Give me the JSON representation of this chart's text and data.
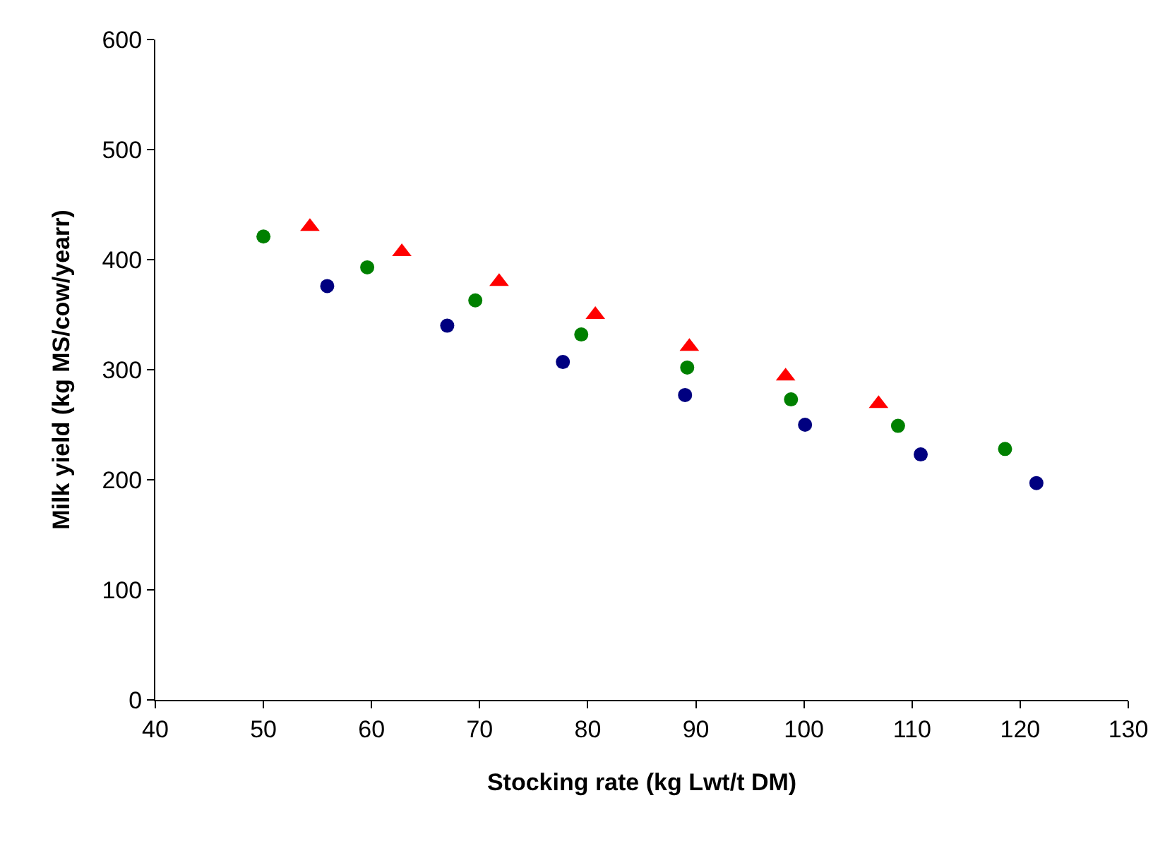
{
  "chart_data": {
    "type": "scatter",
    "xlabel": "Stocking rate (kg Lwt/t DM)",
    "ylabel": "Milk yield (kg MS/cow/yearr)",
    "xlim": [
      40,
      130
    ],
    "xticks": [
      40,
      50,
      60,
      70,
      80,
      90,
      100,
      110,
      120,
      130
    ],
    "ylim": [
      0,
      600
    ],
    "yticks": [
      0,
      100,
      200,
      300,
      400,
      500,
      600
    ],
    "series": [
      {
        "color": "#008000",
        "marker": "circle",
        "x": [
          50,
          59.6,
          69.6,
          79.4,
          89.2,
          98.8,
          108.7,
          118.6
        ],
        "values": [
          421,
          393,
          363,
          332,
          302,
          273,
          249,
          228
        ]
      },
      {
        "color": "#ff0000",
        "marker": "triangle",
        "x": [
          54.3,
          62.8,
          71.8,
          80.7,
          89.4,
          98.3,
          106.9
        ],
        "values": [
          430,
          407,
          380,
          350,
          321,
          294,
          269
        ]
      },
      {
        "color": "#000080",
        "marker": "circle",
        "x": [
          55.9,
          67.0,
          77.7,
          89.0,
          100.1,
          110.8,
          121.5
        ],
        "values": [
          376,
          340,
          307,
          277,
          250,
          223,
          197
        ]
      }
    ]
  }
}
